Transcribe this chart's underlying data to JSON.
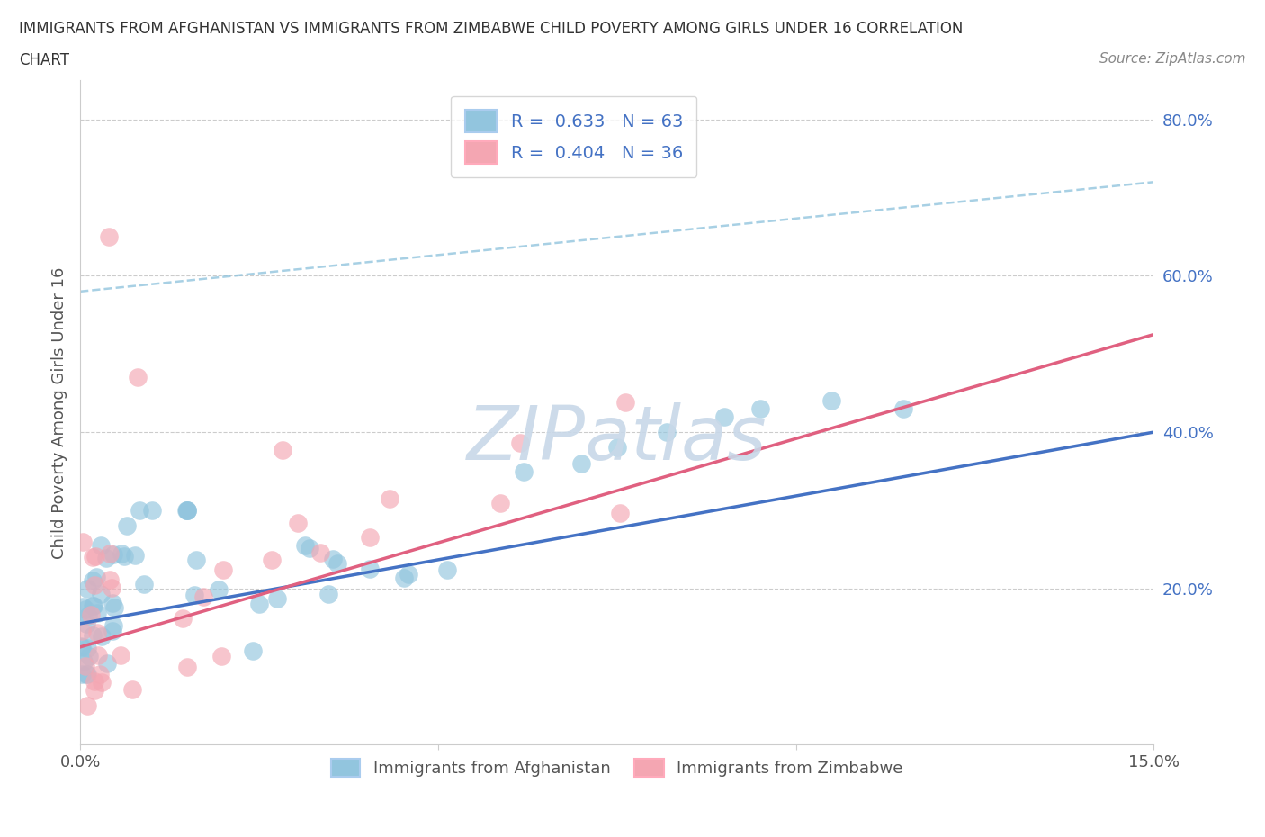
{
  "title_line1": "IMMIGRANTS FROM AFGHANISTAN VS IMMIGRANTS FROM ZIMBABWE CHILD POVERTY AMONG GIRLS UNDER 16 CORRELATION",
  "title_line2": "CHART",
  "source": "Source: ZipAtlas.com",
  "ylabel": "Child Poverty Among Girls Under 16",
  "color_afghanistan": "#92C5DE",
  "color_zimbabwe": "#F4A6B2",
  "color_line_afghanistan": "#4472C4",
  "color_line_zimbabwe": "#E06080",
  "color_dashed": "#92C5DE",
  "watermark_text": "ZIPatlas",
  "watermark_color": "#C8D8E8",
  "background_color": "#FFFFFF",
  "xlim": [
    0.0,
    0.15
  ],
  "ylim": [
    0.0,
    0.85
  ],
  "yticks_right": [
    0.2,
    0.4,
    0.6,
    0.8
  ],
  "ytick_right_labels": [
    "20.0%",
    "40.0%",
    "60.0%",
    "80.0%"
  ],
  "legend_top": [
    {
      "label": "R =  0.633   N = 63",
      "color": "#92C5DE"
    },
    {
      "label": "R =  0.404   N = 36",
      "color": "#F4A6B2"
    }
  ],
  "legend_bottom": [
    "Immigrants from Afghanistan",
    "Immigrants from Zimbabwe"
  ],
  "legend_bottom_colors": [
    "#92C5DE",
    "#F4A6B2"
  ],
  "grid_color": "#CCCCCC",
  "afg_line_x0": 0.0,
  "afg_line_y0": 0.155,
  "afg_line_x1": 0.15,
  "afg_line_y1": 0.4,
  "zim_line_x0": 0.0,
  "zim_line_y0": 0.125,
  "zim_line_x1": 0.15,
  "zim_line_y1": 0.525,
  "dash_line_x0": 0.0,
  "dash_line_y0": 0.58,
  "dash_line_x1": 0.15,
  "dash_line_y1": 0.72
}
